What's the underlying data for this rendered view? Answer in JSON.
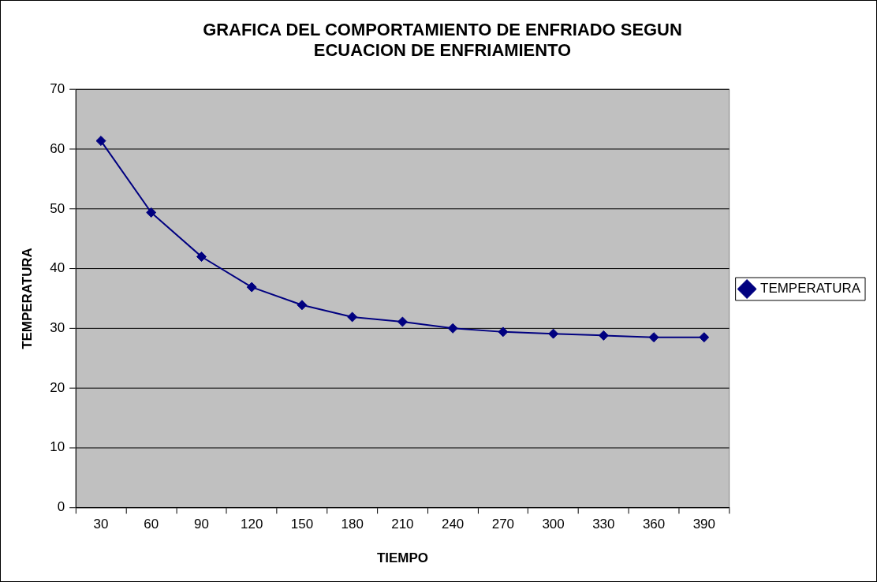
{
  "chart_data": {
    "type": "line",
    "title": "GRAFICA DEL COMPORTAMIENTO DE ENFRIADO SEGUN ECUACION DE ENFRIAMIENTO",
    "xlabel": "TIEMPO",
    "ylabel": "TEMPERATURA",
    "categories": [
      "30",
      "60",
      "90",
      "120",
      "150",
      "180",
      "210",
      "240",
      "270",
      "300",
      "330",
      "360",
      "390"
    ],
    "series": [
      {
        "name": "TEMPERATURA",
        "color": "#000080",
        "values": [
          61.4,
          49.4,
          42.0,
          36.9,
          33.9,
          31.9,
          31.1,
          30.0,
          29.4,
          29.1,
          28.8,
          28.5,
          28.5
        ]
      }
    ],
    "ylim": [
      0,
      70
    ],
    "yticks": [
      0,
      10,
      20,
      30,
      40,
      50,
      60,
      70
    ],
    "grid": "y",
    "legend": "right",
    "marker": "diamond",
    "line_style": "solid"
  }
}
